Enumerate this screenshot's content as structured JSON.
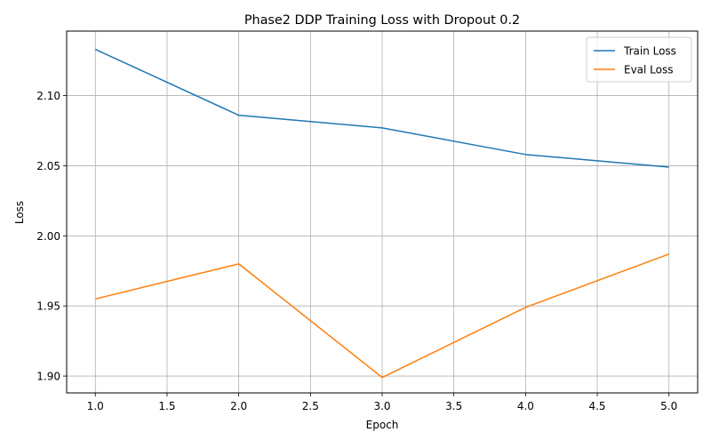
{
  "chart_data": {
    "type": "line",
    "title": "Phase2 DDP Training Loss with Dropout 0.2",
    "xlabel": "Epoch",
    "ylabel": "Loss",
    "xlim": [
      0.8,
      5.2
    ],
    "ylim": [
      1.888,
      2.146
    ],
    "xticks": [
      "1.0",
      "1.5",
      "2.0",
      "2.5",
      "3.0",
      "3.5",
      "4.0",
      "4.5",
      "5.0"
    ],
    "yticks": [
      "1.90",
      "1.95",
      "2.00",
      "2.05",
      "2.10"
    ],
    "grid": true,
    "legend": "top-right",
    "x": [
      1,
      2,
      3,
      4,
      5
    ],
    "series": [
      {
        "name": "Train Loss",
        "color": "#1f77b4",
        "values": [
          2.133,
          2.086,
          2.077,
          2.058,
          2.049
        ]
      },
      {
        "name": "Eval Loss",
        "color": "#ff7f0e",
        "values": [
          1.955,
          1.98,
          1.899,
          1.949,
          1.987
        ]
      }
    ]
  }
}
